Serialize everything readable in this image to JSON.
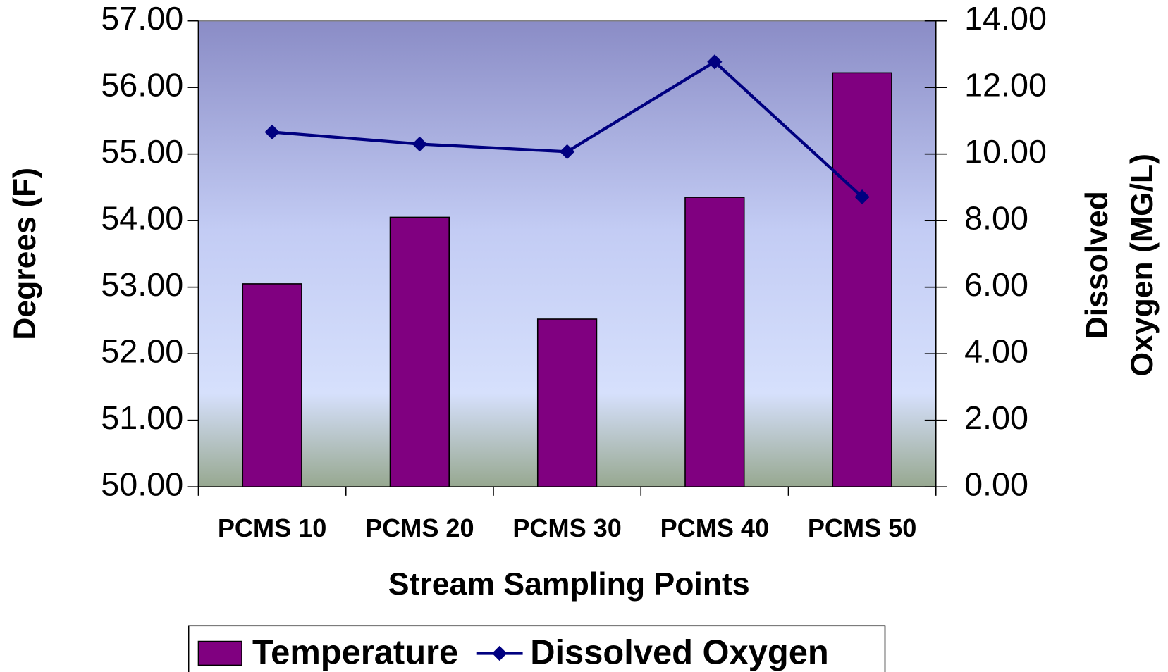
{
  "chart_data": {
    "type": "bar",
    "x_label": "Stream Sampling Points",
    "y_label": "Degrees (F)",
    "y2_label": [
      "Dissolved",
      "Oxygen (MG/L)"
    ],
    "categories": [
      "PCMS 10",
      "PCMS 20",
      "PCMS 30",
      "PCMS 40",
      "PCMS 50"
    ],
    "series": [
      {
        "name": "Temperature",
        "type": "bar",
        "color": "#800080",
        "values": [
          53.05,
          54.05,
          52.52,
          54.35,
          56.22
        ]
      },
      {
        "name": "Dissolved Oxygen",
        "type": "line",
        "axis": "y2",
        "color": "#000080",
        "values": [
          10.66,
          10.3,
          10.07,
          12.77,
          8.71
        ]
      }
    ],
    "ylim": [
      50,
      57
    ],
    "yticks": [
      {
        "value": 50,
        "label": "50.00"
      },
      {
        "value": 51,
        "label": "51.00"
      },
      {
        "value": 52,
        "label": "52.00"
      },
      {
        "value": 53,
        "label": "53.00"
      },
      {
        "value": 54,
        "label": "54.00"
      },
      {
        "value": 55,
        "label": "55.00"
      },
      {
        "value": 56,
        "label": "56.00"
      },
      {
        "value": 57,
        "label": "57.00"
      }
    ],
    "y2lim": [
      0,
      14
    ],
    "y2ticks": [
      {
        "value": 0,
        "label": "0.00"
      },
      {
        "value": 2,
        "label": "2.00"
      },
      {
        "value": 4,
        "label": "4.00"
      },
      {
        "value": 6,
        "label": "6.00"
      },
      {
        "value": 8,
        "label": "8.00"
      },
      {
        "value": 10,
        "label": "10.00"
      },
      {
        "value": 12,
        "label": "12.00"
      },
      {
        "value": 14,
        "label": "14.00"
      }
    ],
    "legend": "bottom"
  }
}
